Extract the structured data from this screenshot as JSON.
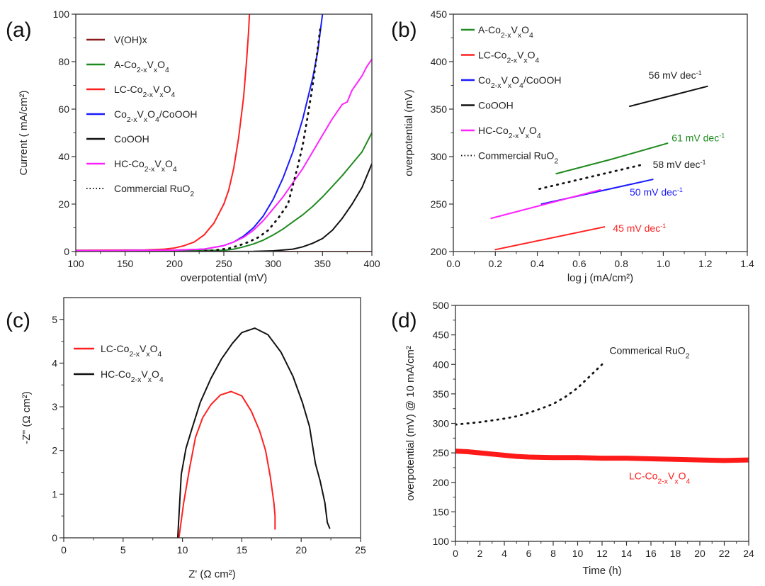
{
  "chart_data": [
    {
      "panel": "(a)",
      "type": "line",
      "xlabel": "overpotential (mV)",
      "ylabel": "Current ( mA/cm²)",
      "xlim": [
        100,
        400
      ],
      "ylim": [
        0,
        100
      ],
      "xticks": [
        100,
        150,
        200,
        250,
        300,
        350,
        400
      ],
      "yticks": [
        0,
        20,
        40,
        60,
        80,
        100
      ],
      "legend_position": "top-left",
      "series": [
        {
          "name": "V(OH)x",
          "label": {
            "pre": "V(OH)x"
          },
          "color": "#8b1a1a",
          "style": "solid",
          "x": [
            100,
            200,
            300,
            400
          ],
          "y": [
            0,
            0,
            0,
            0
          ]
        },
        {
          "name": "A-Co2-xVxO4",
          "label": {
            "pre": "A-Co",
            "sub1": "2-x",
            "mid": "V",
            "sub2": "x",
            "post": "O",
            "sub3": "4"
          },
          "color": "#1f8a1f",
          "style": "solid",
          "x": [
            100,
            200,
            250,
            260,
            270,
            280,
            290,
            300,
            310,
            320,
            330,
            340,
            350,
            360,
            370,
            380,
            390,
            400
          ],
          "y": [
            0.3,
            0.4,
            0.5,
            1,
            2,
            3.2,
            4.8,
            7,
            9.5,
            12.5,
            15.5,
            19,
            23,
            27.5,
            32,
            37,
            42,
            50
          ]
        },
        {
          "name": "LC-Co2-xVxO4",
          "label": {
            "pre": "LC-Co",
            "sub1": "2-x",
            "mid": "V",
            "sub2": "x",
            "post": "O",
            "sub3": "4"
          },
          "color": "#ff2020",
          "style": "solid",
          "x": [
            100,
            170,
            190,
            200,
            210,
            220,
            230,
            240,
            250,
            255,
            260,
            265,
            270,
            273,
            275,
            276
          ],
          "y": [
            0.5,
            0.7,
            1,
            1.5,
            2.5,
            4,
            7,
            12,
            20,
            26,
            35,
            48,
            65,
            80,
            92,
            100
          ]
        },
        {
          "name": "Co2-xVxO4/CoOOH",
          "label": {
            "pre": "Co",
            "sub1": "2-x",
            "mid": "V",
            "sub2": "x",
            "post": "O",
            "sub3": "4",
            "tail": "/CoOOH"
          },
          "color": "#1a1aff",
          "style": "solid",
          "x": [
            100,
            200,
            230,
            250,
            260,
            270,
            280,
            290,
            300,
            310,
            320,
            330,
            340,
            345,
            350
          ],
          "y": [
            0.4,
            0.6,
            1,
            2.5,
            4,
            6.5,
            10,
            15,
            22,
            31,
            42,
            56,
            73,
            84,
            100
          ]
        },
        {
          "name": "CoOOH",
          "label": {
            "pre": "CoOOH"
          },
          "color": "#111111",
          "style": "solid",
          "x": [
            100,
            280,
            300,
            320,
            330,
            340,
            350,
            360,
            370,
            380,
            390,
            400
          ],
          "y": [
            0,
            0.1,
            0.3,
            1,
            2,
            3.5,
            5.5,
            9,
            14,
            20,
            27,
            37
          ]
        },
        {
          "name": "HC-Co2-xVxO4",
          "label": {
            "pre": "HC-Co",
            "sub1": "2-x",
            "mid": "V",
            "sub2": "x",
            "post": "O",
            "sub3": "4"
          },
          "color": "#ff22ff",
          "style": "solid",
          "x": [
            100,
            200,
            230,
            250,
            260,
            270,
            280,
            290,
            300,
            310,
            320,
            330,
            340,
            350,
            360,
            370,
            375,
            380,
            390,
            395,
            400
          ],
          "y": [
            0.4,
            0.6,
            1,
            2.5,
            4,
            6,
            9,
            13,
            18,
            23,
            29,
            35,
            42,
            49,
            56,
            62,
            63,
            68,
            74,
            78,
            81
          ]
        },
        {
          "name": "Commercial RuO2",
          "label": {
            "pre": "Commercial RuO",
            "sub1": "2"
          },
          "color": "#111111",
          "style": "dotted",
          "x": [
            225,
            240,
            255,
            265,
            275,
            285,
            295,
            305,
            315,
            320,
            325,
            330,
            335,
            340,
            345,
            348
          ],
          "y": [
            0,
            0.5,
            1.3,
            2.5,
            4,
            6,
            9,
            14,
            20,
            28,
            36,
            45,
            57,
            70,
            85,
            95
          ]
        }
      ]
    },
    {
      "panel": "(b)",
      "type": "line",
      "xlabel": "log j (mA/cm²)",
      "ylabel": "overpotential (mV)",
      "xlim": [
        0.0,
        1.4
      ],
      "ylim": [
        200,
        450
      ],
      "xticks": [
        0.0,
        0.2,
        0.4,
        0.6,
        0.8,
        1.0,
        1.2,
        1.4
      ],
      "xtick_labels": [
        "0.0",
        "0.2",
        "0.4",
        "0.6",
        "0.8",
        "1.0",
        "1.2",
        "1.4"
      ],
      "yticks": [
        200,
        250,
        300,
        350,
        400,
        450
      ],
      "legend_position": "top-left",
      "series": [
        {
          "name": "A-Co2-xVxO4",
          "label": {
            "pre": "A-Co",
            "sub1": "2-x",
            "mid": "V",
            "sub2": "x",
            "post": "O",
            "sub3": "4"
          },
          "color": "#1f8a1f",
          "style": "solid",
          "x": [
            0.49,
            0.75,
            1.02
          ],
          "y": [
            282,
            297,
            314
          ]
        },
        {
          "name": "LC-Co2-xVxO4",
          "label": {
            "pre": "LC-Co",
            "sub1": "2-x",
            "mid": "V",
            "sub2": "x",
            "post": "O",
            "sub3": "4"
          },
          "color": "#ff2020",
          "style": "solid",
          "x": [
            0.2,
            0.72
          ],
          "y": [
            202,
            226
          ]
        },
        {
          "name": "Co2-xVxO4/CoOOH",
          "label": {
            "pre": "Co",
            "sub1": "2-x",
            "mid": "V",
            "sub2": "x",
            "post": "O",
            "sub3": "4",
            "tail": "/CoOOH"
          },
          "color": "#1a1aff",
          "style": "solid",
          "x": [
            0.42,
            0.95
          ],
          "y": [
            250,
            276
          ]
        },
        {
          "name": "CoOOH",
          "label": {
            "pre": "CoOOH"
          },
          "color": "#111111",
          "style": "solid",
          "x": [
            0.84,
            1.21
          ],
          "y": [
            353,
            374
          ]
        },
        {
          "name": "HC-Co2-xVxO4",
          "label": {
            "pre": "HC-Co",
            "sub1": "2-x",
            "mid": "V",
            "sub2": "x",
            "post": "O",
            "sub3": "4"
          },
          "color": "#ff22ff",
          "style": "solid",
          "x": [
            0.18,
            0.7
          ],
          "y": [
            235,
            265
          ]
        },
        {
          "name": "Commercial RuO2",
          "label": {
            "pre": "Commercial RuO",
            "sub1": "2"
          },
          "color": "#111111",
          "style": "dotted",
          "x": [
            0.41,
            0.89
          ],
          "y": [
            266,
            291
          ]
        }
      ],
      "annotations": [
        {
          "text": "56 mV dec",
          "sup": "-1",
          "color": "#222222",
          "x": 0.93,
          "y": 382
        },
        {
          "text": "61 mV dec",
          "sup": "-1",
          "color": "#1f8a1f",
          "y": 316,
          "x": 1.04
        },
        {
          "text": "58 mV dec",
          "sup": "-1",
          "color": "#222222",
          "x": 0.95,
          "y": 288
        },
        {
          "text": "50 mV dec",
          "sup": "-1",
          "color": "#1a1aff",
          "x": 0.84,
          "y": 259
        },
        {
          "text": "45 mV dec",
          "sup": "-1",
          "color": "#ff2020",
          "x": 0.76,
          "y": 221
        }
      ]
    },
    {
      "panel": "(c)",
      "type": "line",
      "xlabel": "Z' (Ω cm²)",
      "ylabel": "-Z'' (Ω cm²)",
      "xlim": [
        0,
        25
      ],
      "ylim": [
        0,
        5.5
      ],
      "xticks": [
        0,
        5,
        10,
        15,
        20,
        25
      ],
      "yticks": [
        0,
        1,
        2,
        3,
        4,
        5
      ],
      "legend_position": "top-left",
      "series": [
        {
          "name": "LC-Co2-xVxO4",
          "label": {
            "pre": "LC-Co",
            "sub1": "2-x",
            "mid": "V",
            "sub2": "x",
            "post": "O",
            "sub3": "4"
          },
          "color": "#ff2020",
          "style": "solid",
          "x": [
            9.7,
            10.1,
            10.6,
            11.1,
            11.7,
            12.4,
            13.2,
            14.1,
            15.0,
            15.8,
            16.5,
            17.0,
            17.4,
            17.7,
            17.8,
            17.8
          ],
          "y": [
            0,
            0.8,
            1.6,
            2.3,
            2.75,
            3.05,
            3.27,
            3.35,
            3.25,
            2.9,
            2.45,
            2.0,
            1.4,
            0.8,
            0.5,
            0.2
          ]
        },
        {
          "name": "HC-Co2-xVxO4",
          "label": {
            "pre": "HC-Co",
            "sub1": "2-x",
            "mid": "V",
            "sub2": "x",
            "post": "O",
            "sub3": "4"
          },
          "color": "#111111",
          "style": "solid",
          "x": [
            9.6,
            9.9,
            10.3,
            10.8,
            11.5,
            12.4,
            13.3,
            14.2,
            15.0,
            16.1,
            17.2,
            18.3,
            19.3,
            20.1,
            20.7,
            21.2,
            21.6,
            22.0,
            22.2,
            22.4
          ],
          "y": [
            0,
            1.45,
            2.05,
            2.5,
            3.1,
            3.65,
            4.1,
            4.45,
            4.7,
            4.8,
            4.65,
            4.25,
            3.7,
            3.1,
            2.55,
            1.7,
            1.3,
            0.8,
            0.35,
            0.22
          ]
        }
      ]
    },
    {
      "panel": "(d)",
      "type": "line",
      "xlabel": "Time (h)",
      "ylabel": "overpotential (mV) @ 10 mA/cm²",
      "xlim": [
        0,
        24
      ],
      "ylim": [
        100,
        500
      ],
      "xticks": [
        0,
        2,
        4,
        6,
        8,
        10,
        12,
        14,
        16,
        18,
        20,
        22,
        24
      ],
      "yticks": [
        100,
        150,
        200,
        250,
        300,
        350,
        400,
        450,
        500
      ],
      "series": [
        {
          "name": "Commerical RuO2",
          "label": {
            "pre": "Commerical RuO",
            "sub1": "2"
          },
          "color": "#111111",
          "style": "dotted",
          "x": [
            0,
            1,
            2,
            3,
            4,
            5,
            6,
            7,
            8,
            9,
            10,
            10.5,
            11,
            11.5,
            12
          ],
          "y": [
            298,
            300,
            302,
            305,
            308,
            312,
            318,
            325,
            333,
            345,
            360,
            370,
            380,
            390,
            400
          ]
        },
        {
          "name": "LC-Co2-xVxO4",
          "label": {
            "pre": "LC-Co",
            "sub1": "2-x",
            "mid": "V",
            "sub2": "x",
            "post": "O",
            "sub3": "4"
          },
          "color": "#ff1a1a",
          "style": "thick",
          "x": [
            0,
            1,
            2,
            3,
            4,
            5,
            6,
            8,
            10,
            12,
            14,
            16,
            18,
            20,
            22,
            24
          ],
          "y": [
            253,
            252,
            250,
            248,
            246,
            244,
            243,
            242,
            242,
            241,
            241,
            240,
            239,
            238,
            237,
            238
          ]
        }
      ],
      "annotations": [
        {
          "series": "Commerical RuO2",
          "color": "#222222",
          "x": 12.6,
          "y": 418
        },
        {
          "series": "LC-Co2-xVxO4",
          "color": "#ff1a1a",
          "x": 14.2,
          "y": 205
        }
      ]
    }
  ],
  "panel_labels": [
    "(a)",
    "(b)",
    "(c)",
    "(d)"
  ]
}
